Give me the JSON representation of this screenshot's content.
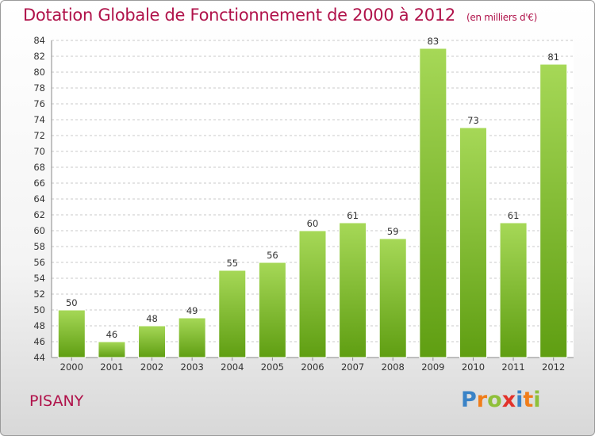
{
  "header": {
    "title": "Dotation Globale de Fonctionnement de 2000 à 2012",
    "subtitle": "(en milliers d'€)"
  },
  "footer": {
    "place": "PISANY",
    "logo_letters": [
      "P",
      "r",
      "o",
      "x",
      "i",
      "t",
      "i"
    ],
    "logo_colors": [
      "#3a83c7",
      "#f07d1a",
      "#8fc03a",
      "#e2322a",
      "#3a83c7",
      "#f07d1a",
      "#8fc03a"
    ]
  },
  "colors": {
    "title": "#b0124a",
    "bar_top": "#a6d857",
    "bar_bottom": "#5f9e12",
    "grid": "#c8c8c8"
  },
  "chart_data": {
    "type": "bar",
    "title": "Dotation Globale de Fonctionnement de 2000 à 2012",
    "subtitle": "(en milliers d'€)",
    "categories": [
      "2000",
      "2001",
      "2002",
      "2003",
      "2004",
      "2005",
      "2006",
      "2007",
      "2008",
      "2009",
      "2010",
      "2011",
      "2012"
    ],
    "values": [
      50,
      46,
      48,
      49,
      55,
      56,
      60,
      61,
      59,
      83,
      73,
      61,
      81
    ],
    "ylim": [
      44,
      84
    ],
    "yticks": [
      44,
      46,
      48,
      50,
      52,
      54,
      56,
      58,
      60,
      62,
      64,
      66,
      68,
      70,
      72,
      74,
      76,
      78,
      80,
      82,
      84
    ],
    "grid": true,
    "data_labels": true
  }
}
